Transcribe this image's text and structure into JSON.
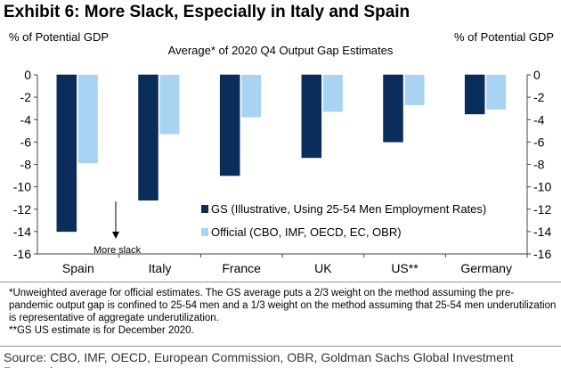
{
  "title": "Exhibit 6: More Slack, Especially in Italy and Spain",
  "chart_data": {
    "type": "bar",
    "title": "Average* of 2020 Q4 Output Gap Estimates",
    "ylabel_left": "% of Potential GDP",
    "ylabel_right": "% of Potential GDP",
    "categories": [
      "Spain",
      "Italy",
      "France",
      "UK",
      "US**",
      "Germany"
    ],
    "series": [
      {
        "name": "GS (Illustrative, Using 25-54 Men Employment Rates)",
        "color": "#0b2d5b",
        "values": [
          -14.0,
          -11.2,
          -9.0,
          -7.4,
          -6.0,
          -3.5
        ]
      },
      {
        "name": "Official (CBO, IMF, OECD, EC, OBR)",
        "color": "#a9d3f2",
        "values": [
          -7.9,
          -5.3,
          -3.8,
          -3.3,
          -2.7,
          -3.1
        ]
      }
    ],
    "ylim": [
      -16,
      0
    ],
    "yticks": [
      0,
      -2,
      -4,
      -6,
      -8,
      -10,
      -12,
      -14,
      -16
    ],
    "annotation": "More slack",
    "legend_placement": "lower-right inside",
    "grid": false
  },
  "notes": [
    "*Unweighted average for official estimates.  The GS average puts a 2/3 weight on the method assuming the pre-pandemic output gap is confined to 25-54 men and a 1/3 weight on the method assuming that 25-54 men underutilization is representative of aggregate underutilization.",
    "**GS US estimate is for December 2020."
  ],
  "source": "Source: CBO, IMF, OECD, European Commission, OBR, Goldman Sachs Global Investment Research"
}
